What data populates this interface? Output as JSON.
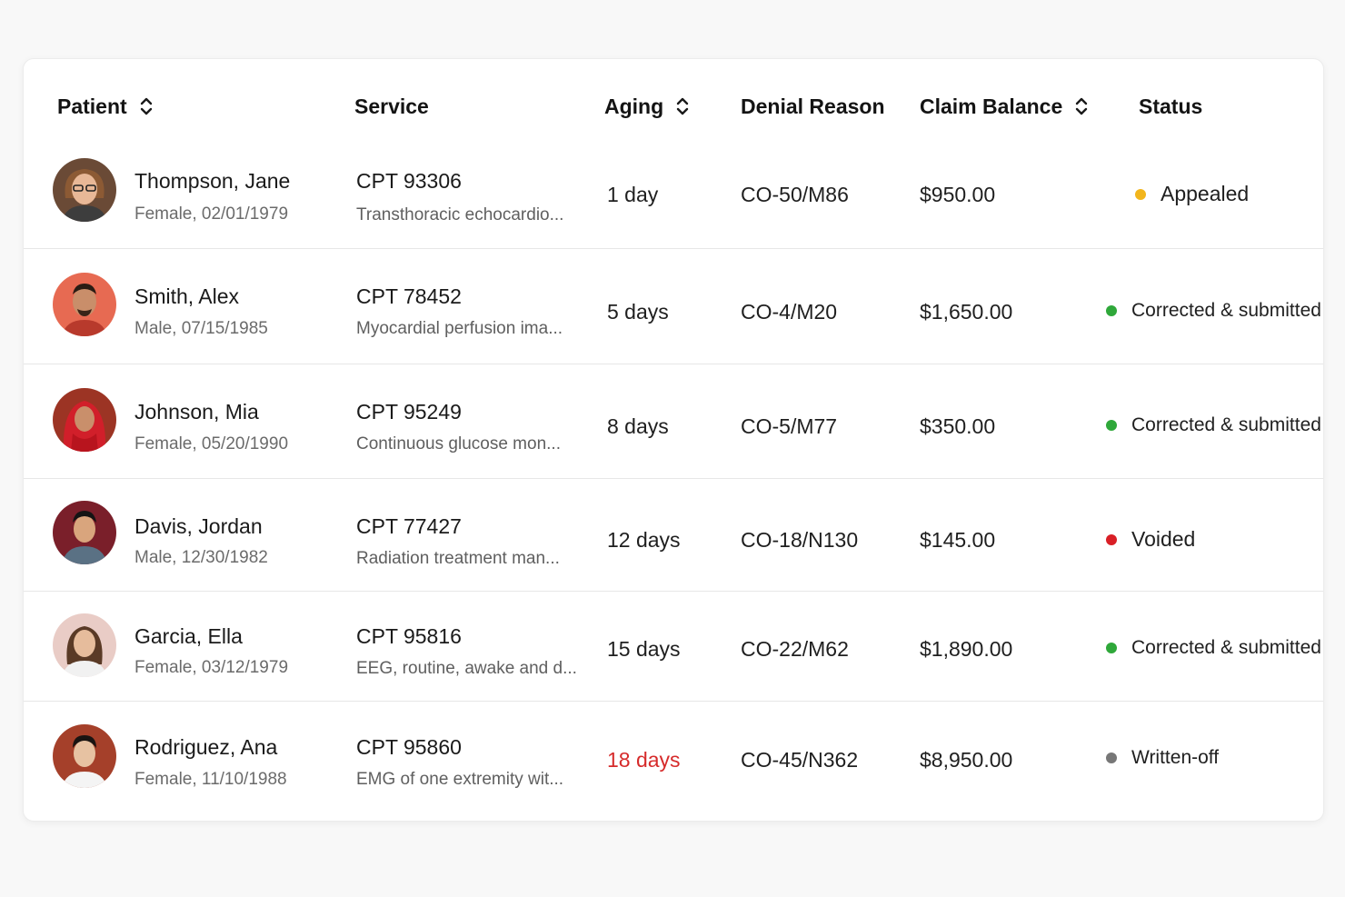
{
  "table": {
    "columns": [
      {
        "key": "patient",
        "label": "Patient",
        "sortable": true
      },
      {
        "key": "service",
        "label": "Service",
        "sortable": false
      },
      {
        "key": "aging",
        "label": "Aging",
        "sortable": true
      },
      {
        "key": "denial_reason",
        "label": "Denial Reason",
        "sortable": false
      },
      {
        "key": "claim_balance",
        "label": "Claim Balance",
        "sortable": true
      },
      {
        "key": "status",
        "label": "Status",
        "sortable": false
      }
    ],
    "rows": [
      {
        "name": "Thompson, Jane",
        "details": "Female, 02/01/1979",
        "cpt": "CPT 93306",
        "service_desc": "Transthoracic echocardio...",
        "aging": "1 day",
        "denial_reason": "CO-50/M86",
        "balance": "$950.00",
        "status": "Appealed",
        "status_color": "#f2b51c"
      },
      {
        "name": "Smith, Alex",
        "details": "Male, 07/15/1985",
        "cpt": "CPT 78452",
        "service_desc": "Myocardial perfusion ima...",
        "aging": "5 days",
        "denial_reason": "CO-4/M20",
        "balance": "$1,650.00",
        "status": "Corrected & submitted",
        "status_color": "#2fa83a"
      },
      {
        "name": "Johnson, Mia",
        "details": "Female, 05/20/1990",
        "cpt": "CPT 95249",
        "service_desc": "Continuous glucose mon...",
        "aging": "8 days",
        "denial_reason": "CO-5/M77",
        "balance": "$350.00",
        "status": "Corrected & submitted",
        "status_color": "#2fa83a"
      },
      {
        "name": "Davis, Jordan",
        "details": "Male, 12/30/1982",
        "cpt": "CPT 77427",
        "service_desc": "Radiation treatment man...",
        "aging": "12 days",
        "denial_reason": "CO-18/N130",
        "balance": "$145.00",
        "status": "Voided",
        "status_color": "#d91f26"
      },
      {
        "name": "Garcia, Ella",
        "details": "Female, 03/12/1979",
        "cpt": "CPT 95816",
        "service_desc": "EEG, routine, awake and d...",
        "aging": "15 days",
        "denial_reason": "CO-22/M62",
        "balance": "$1,890.00",
        "status": "Corrected & submitted",
        "status_color": "#2fa83a"
      },
      {
        "name": "Rodriguez, Ana",
        "details": "Female, 11/10/1988",
        "cpt": "CPT 95860",
        "service_desc": "EMG of one extremity wit...",
        "aging": "18 days",
        "denial_reason": "CO-45/N362",
        "balance": "$8,950.00",
        "status": "Written-off",
        "status_color": "#777777",
        "aging_color": "#d62b2b"
      }
    ]
  },
  "icons": {
    "sort": "sort-arrows-icon",
    "avatar": "user-avatar-icon"
  },
  "colors": {
    "aging_overdue": "#d62b2b",
    "status_appealed": "#f2b51c",
    "status_corrected": "#2fa83a",
    "status_voided": "#d91f26",
    "status_written_off": "#777777"
  }
}
